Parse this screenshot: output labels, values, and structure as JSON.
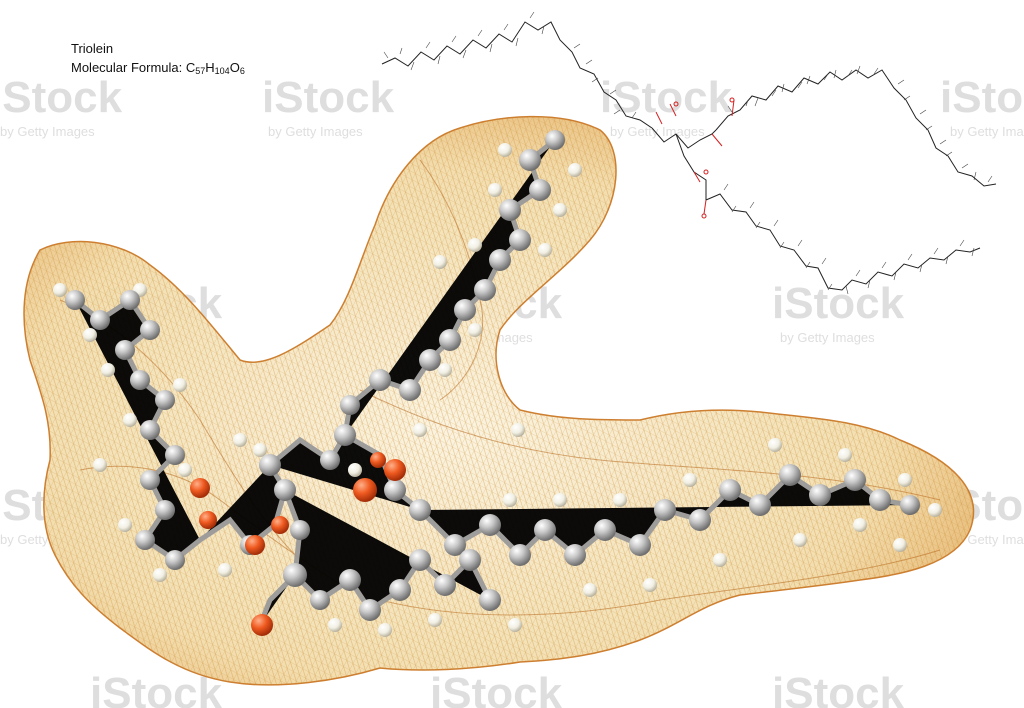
{
  "caption": {
    "title": "Triolein",
    "formula_label": "Molecular Formula: ",
    "formula": {
      "c": "C",
      "c_count": "57",
      "h": "H",
      "h_count": "104",
      "o": "O",
      "o_count": "6"
    }
  },
  "watermark": {
    "brand": "iStock",
    "tagline": "by Getty Images"
  },
  "colors": {
    "mesh_light": "#e0b866",
    "mesh_dark": "#c9741f",
    "mesh_fill": "#f6e7c4",
    "carbon_atom": "#b8b8b8",
    "hydrogen_atom": "#f3f1e6",
    "oxygen_atom": "#e8481c",
    "skeletal_bond": "#222222",
    "skeletal_oxygen": "#d32020"
  }
}
